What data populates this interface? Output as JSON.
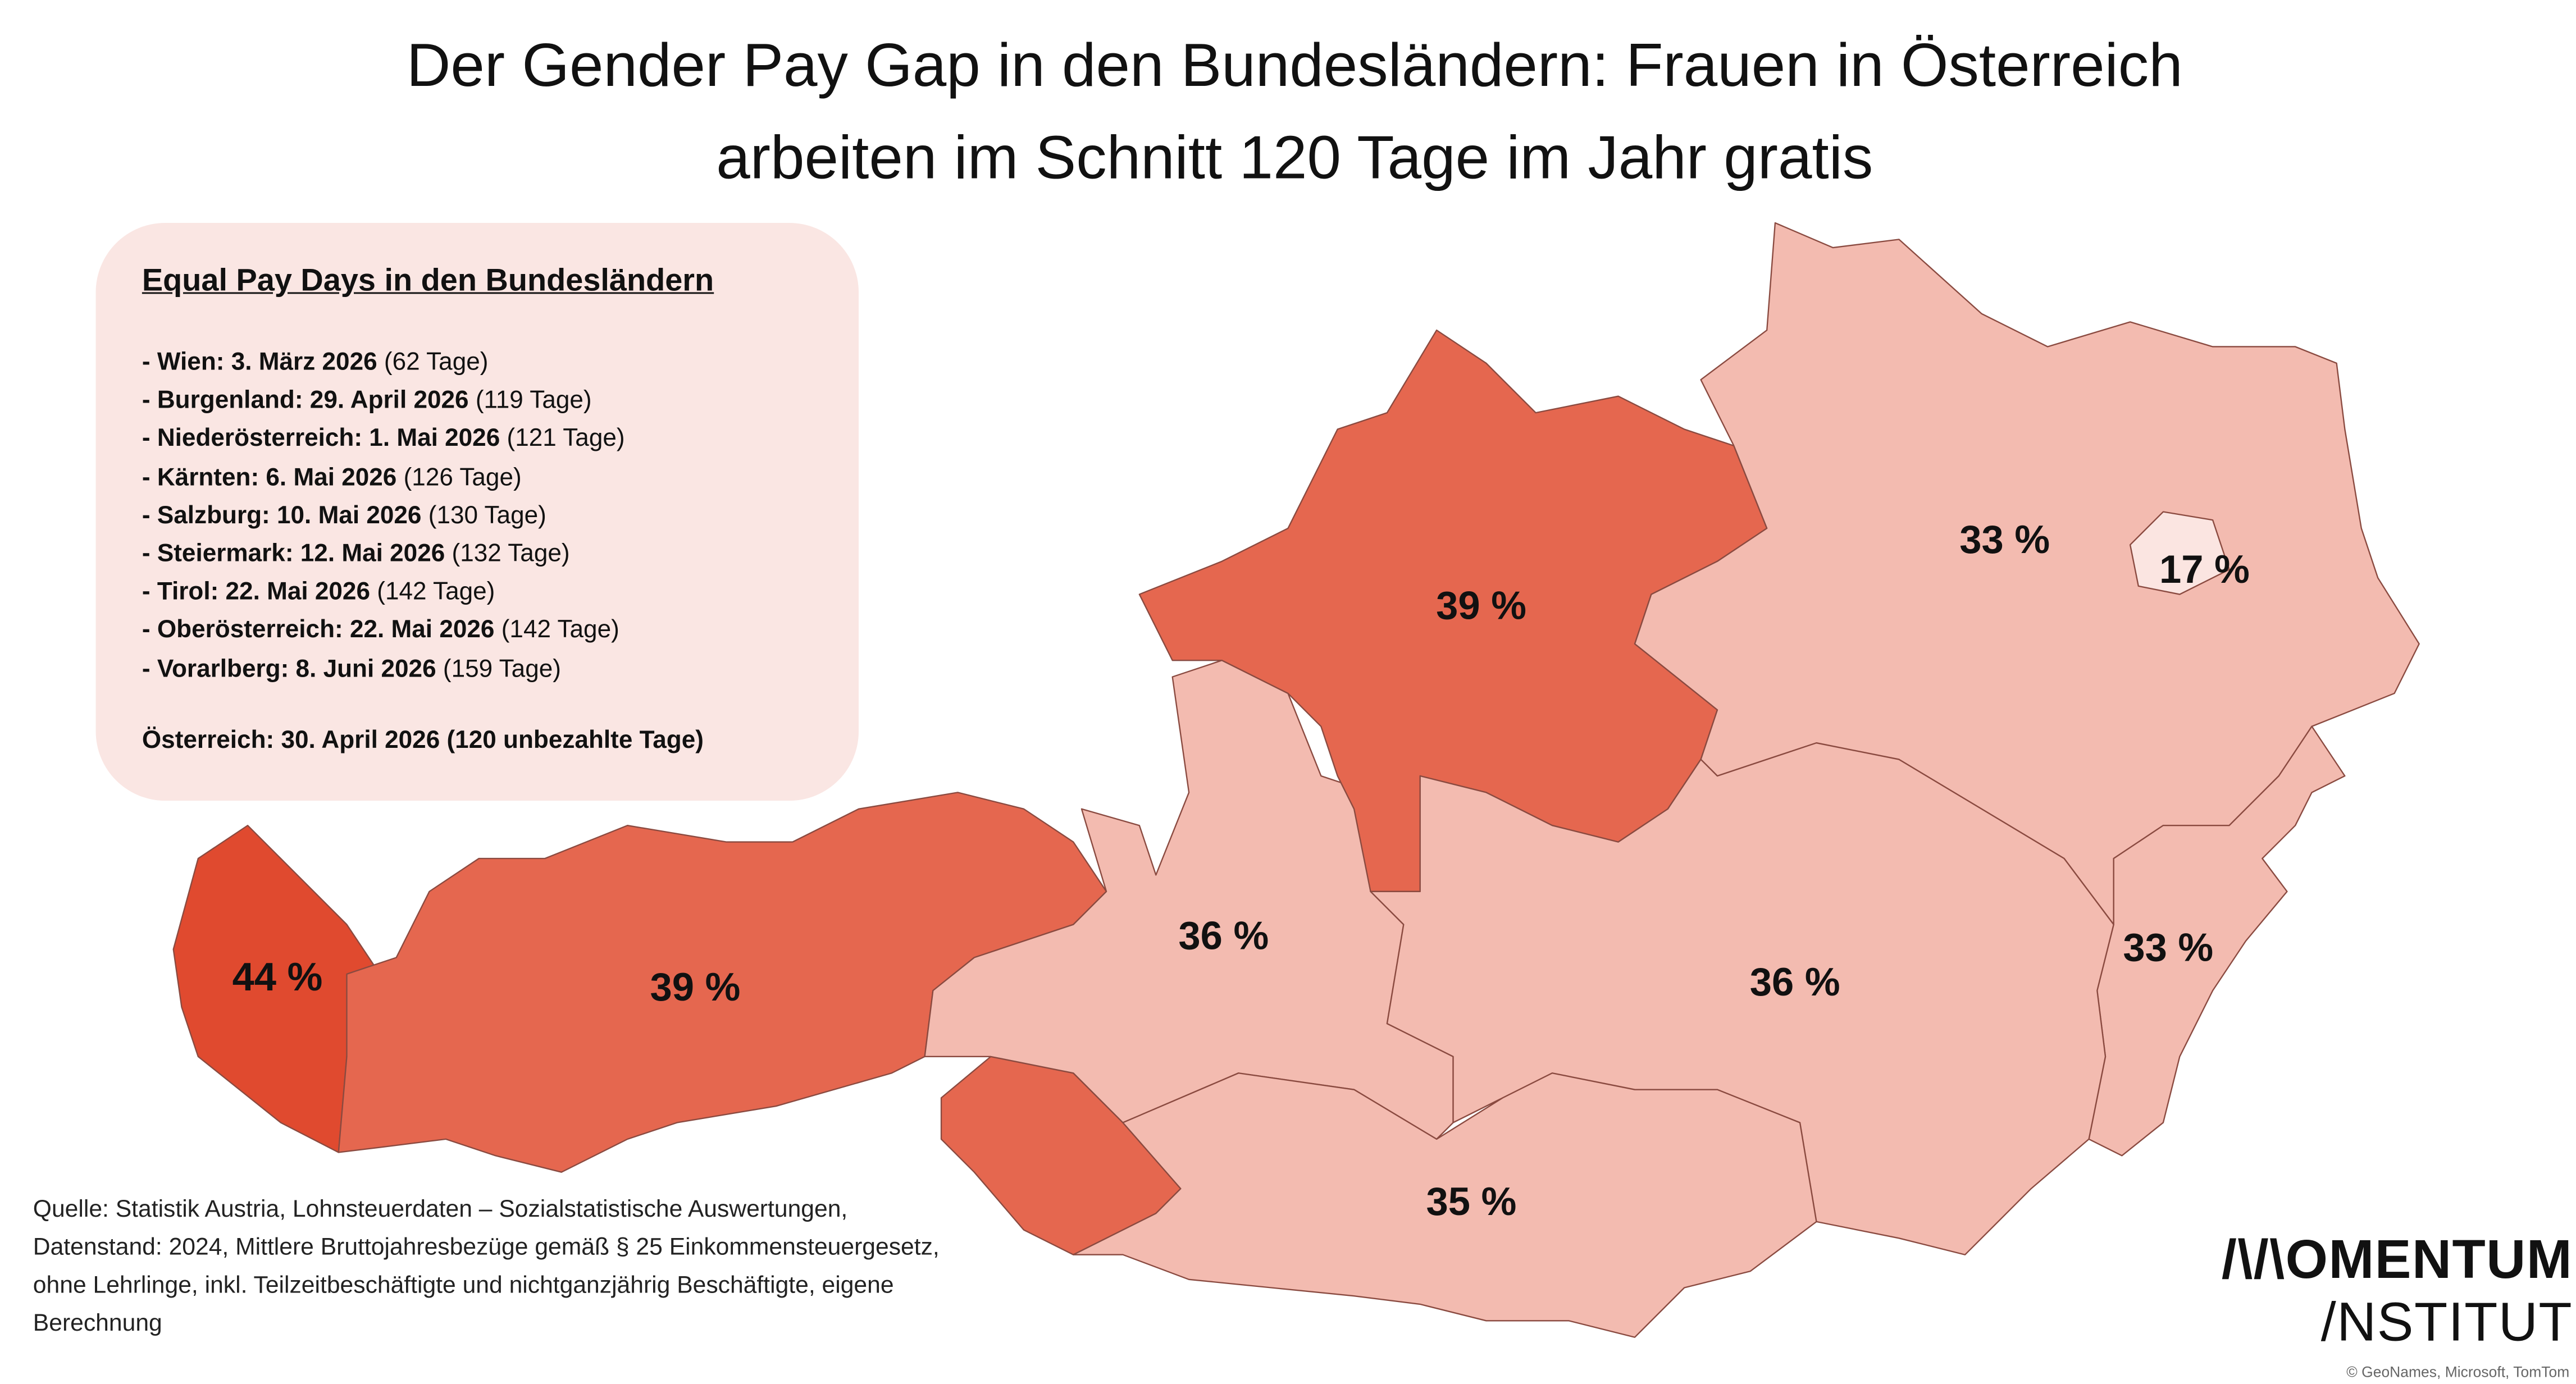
{
  "title": {
    "line1": "Der Gender Pay Gap in den Bundesländern: Frauen in Österreich",
    "line2": "arbeiten im Schnitt 120 Tage im Jahr gratis"
  },
  "colors": {
    "light": "#f3bbb0",
    "medium": "#e5674f",
    "dark": "#e04a2f",
    "wien": "#fbe5e1",
    "box": "#fae6e3"
  },
  "chart_data": {
    "type": "choropleth",
    "title": "Gender Pay Gap in den Bundesländern",
    "regions": [
      {
        "name": "Vorarlberg",
        "value": 44,
        "label": "44 %"
      },
      {
        "name": "Tirol",
        "value": 39,
        "label": "39 %"
      },
      {
        "name": "Oberösterreich",
        "value": 39,
        "label": "39 %"
      },
      {
        "name": "Salzburg",
        "value": 36,
        "label": "36 %"
      },
      {
        "name": "Steiermark",
        "value": 36,
        "label": "36 %"
      },
      {
        "name": "Kärnten",
        "value": 35,
        "label": "35 %"
      },
      {
        "name": "Niederösterreich",
        "value": 33,
        "label": "33 %"
      },
      {
        "name": "Burgenland",
        "value": 33,
        "label": "33 %"
      },
      {
        "name": "Wien",
        "value": 17,
        "label": "17 %"
      }
    ]
  },
  "infobox": {
    "heading": "Equal Pay Days in den Bundesländern",
    "items": [
      {
        "bold": "- Wien: 3. März 2026",
        "days": "(62 Tage)"
      },
      {
        "bold": "- Burgenland: 29. April 2026",
        "days": "(119 Tage)"
      },
      {
        "bold": "- Niederösterreich: 1. Mai 2026",
        "days": "(121 Tage)"
      },
      {
        "bold": "- Kärnten: 6. Mai 2026",
        "days": "(126 Tage)"
      },
      {
        "bold": "- Salzburg: 10. Mai 2026",
        "days": "(130 Tage)"
      },
      {
        "bold": "- Steiermark: 12. Mai 2026",
        "days": "(132 Tage)"
      },
      {
        "bold": "- Tirol: 22. Mai 2026",
        "days": "(142 Tage)"
      },
      {
        "bold": "- Oberösterreich: 22. Mai 2026",
        "days": "(142 Tage)"
      },
      {
        "bold": "- Vorarlberg: 8. Juni 2026",
        "days": "(159 Tage)"
      }
    ],
    "total": "Österreich: 30. April 2026 (120 unbezahlte Tage)"
  },
  "source": "Quelle: Statistik Austria, Lohnsteuerdaten – Sozialstatistische Auswertungen, Datenstand: 2024, Mittlere Bruttojahresbezüge gemäß § 25 Einkommensteuergesetz, ohne Lehrlinge, inkl. Teilzeitbeschäftigte und nichtganzjährig Beschäftigte, eigene Berechnung",
  "logo": {
    "line1": "/\\/\\OMENTUM",
    "line2": "/NSTITUT"
  },
  "map_credit": "© GeoNames, Microsoft, TomTom"
}
